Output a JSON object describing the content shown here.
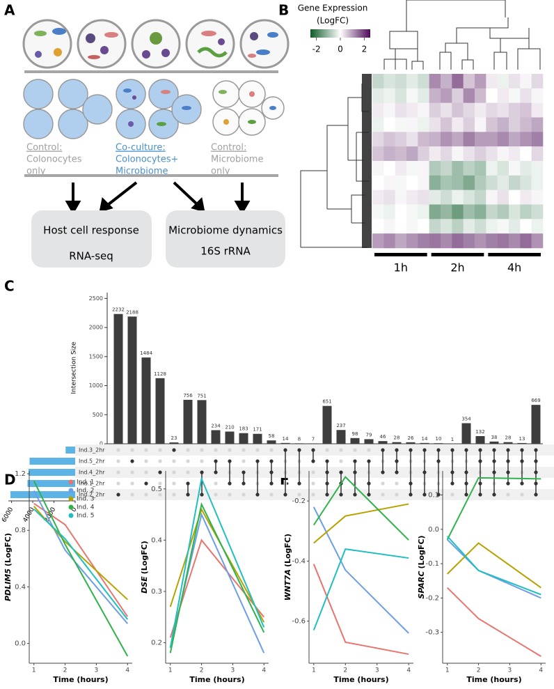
{
  "panel_labels": [
    "A",
    "B",
    "C",
    "D",
    "E"
  ],
  "diagram": {
    "groups": [
      {
        "heading": "Control:",
        "lines": [
          "Colonocytes",
          "only"
        ]
      },
      {
        "heading": "Co-culture:",
        "lines": [
          "Colonocytes+",
          "Microbiome"
        ]
      },
      {
        "heading": "Control:",
        "lines": [
          "Microbiome",
          "only"
        ]
      }
    ],
    "outputs": [
      {
        "title": "Host cell response",
        "method": "RNA-seq"
      },
      {
        "title": "Microbiome dynamics",
        "method": "16S rRNA"
      }
    ]
  },
  "chart_data": [
    {
      "type": "heatmap",
      "title": "Gene Expression",
      "subtitle": "(LogFC)",
      "colors": [
        "#0d5a2a",
        "#ffffff",
        "#4b0a55"
      ],
      "clim": [
        -2.5,
        2.5
      ],
      "colorbar_ticks": [
        -2,
        0,
        2
      ],
      "groups": [
        "1h",
        "2h",
        "4h"
      ],
      "matrix": [
        [
          -0.6,
          -0.4,
          -0.5,
          -0.3,
          -0.5,
          1.2,
          0.8,
          1.5,
          0.6,
          1.0,
          0.2,
          -0.2,
          0.3,
          0.1,
          0.4
        ],
        [
          -0.3,
          -0.2,
          -0.4,
          -0.1,
          -0.3,
          0.8,
          1.0,
          0.5,
          1.2,
          0.7,
          0.0,
          0.2,
          -0.1,
          0.3,
          0.1
        ],
        [
          0.2,
          0.1,
          0.3,
          0.2,
          0.1,
          0.5,
          0.3,
          0.6,
          0.4,
          0.2,
          0.4,
          0.3,
          0.5,
          0.6,
          0.2
        ],
        [
          -0.2,
          0.0,
          -0.1,
          0.1,
          -0.2,
          0.3,
          0.6,
          0.2,
          0.5,
          0.1,
          0.6,
          0.8,
          0.5,
          0.7,
          0.9
        ],
        [
          0.4,
          0.6,
          0.5,
          0.3,
          0.7,
          0.8,
          1.1,
          0.9,
          1.3,
          1.0,
          1.0,
          1.2,
          0.9,
          1.1,
          1.3
        ],
        [
          0.6,
          0.8,
          0.7,
          0.9,
          0.5,
          0.2,
          0.4,
          0.1,
          0.3,
          0.5,
          0.3,
          0.1,
          0.2,
          0.0,
          0.4
        ],
        [
          0.1,
          0.0,
          0.2,
          -0.1,
          0.1,
          -0.8,
          -0.6,
          -1.0,
          -0.7,
          -0.9,
          -0.2,
          -0.4,
          -0.1,
          -0.3,
          -0.2
        ],
        [
          0.0,
          0.1,
          -0.1,
          0.0,
          0.1,
          -1.2,
          -0.9,
          -1.0,
          -1.3,
          -0.8,
          -0.5,
          -0.3,
          -0.6,
          -0.4,
          -0.2
        ],
        [
          0.2,
          0.3,
          0.1,
          0.2,
          0.3,
          -0.3,
          -0.5,
          -0.2,
          -0.4,
          -0.6,
          0.1,
          0.3,
          0.0,
          0.2,
          0.1
        ],
        [
          -0.1,
          -0.2,
          0.0,
          -0.1,
          -0.2,
          -1.3,
          -1.1,
          -1.5,
          -1.0,
          -1.2,
          -0.6,
          -0.8,
          -0.4,
          -0.7,
          -0.5
        ],
        [
          0.0,
          0.1,
          0.0,
          -0.1,
          0.0,
          -0.6,
          -0.4,
          -0.7,
          -0.3,
          -0.5,
          -0.2,
          -0.1,
          -0.3,
          0.0,
          -0.2
        ],
        [
          1.0,
          1.2,
          0.9,
          1.1,
          1.3,
          1.4,
          1.2,
          1.5,
          1.3,
          1.1,
          1.3,
          1.4,
          1.2,
          1.5,
          1.1
        ]
      ]
    },
    {
      "type": "upset",
      "ylabel": "Intersection Size",
      "color": "#3d3d3d",
      "set_color": "#5bb3e6",
      "values": [
        2232,
        2188,
        1484,
        1128,
        23,
        756,
        751,
        234,
        210,
        183,
        171,
        58,
        14,
        8,
        7,
        651,
        237,
        98,
        79,
        46,
        28,
        26,
        14,
        10,
        1,
        354,
        132,
        38,
        28,
        13,
        669
      ],
      "ylim": [
        0,
        2600
      ],
      "yticks": [
        0,
        500,
        1000,
        1500,
        2000,
        2500
      ],
      "sets": [
        "Ind.3_2hr",
        "Ind.5_2hr",
        "Ind.4_2hr",
        "Ind.1_2hr",
        "Ind.2_2hr"
      ],
      "set_sizes": [
        900,
        4300,
        4400,
        4500,
        6100
      ],
      "set_xlim": [
        6300,
        0
      ],
      "set_xticks": [
        6000,
        4000,
        2000,
        0
      ],
      "memberships": [
        [
          4
        ],
        [
          1
        ],
        [
          3
        ],
        [
          2
        ],
        [
          0
        ],
        [
          3,
          4
        ],
        [
          2,
          4
        ],
        [
          1,
          2
        ],
        [
          1,
          3
        ],
        [
          2,
          3
        ],
        [
          1,
          4
        ],
        [
          1,
          2,
          3
        ],
        [
          0,
          4
        ],
        [
          0,
          3
        ],
        [
          0,
          1
        ],
        [
          1,
          2,
          3,
          4
        ],
        [
          2,
          3,
          4
        ],
        [
          1,
          2,
          4
        ],
        [
          1,
          3,
          4
        ],
        [
          0,
          2
        ],
        [
          0,
          1,
          2
        ],
        [
          0,
          3,
          4
        ],
        [
          0,
          2,
          4
        ],
        [
          0,
          1,
          4
        ],
        [
          0,
          2,
          3
        ],
        [
          0,
          2,
          3,
          4
        ],
        [
          0,
          1,
          3,
          4
        ],
        [
          0,
          1,
          2,
          4
        ],
        [
          0,
          1,
          2,
          3
        ],
        [
          0,
          1,
          3
        ],
        [
          0,
          1,
          2,
          3,
          4
        ]
      ]
    },
    {
      "type": "line",
      "gene": "PDLIM5",
      "ylabel": "(LogFC)",
      "xlabel": "Time (hours)",
      "legend": true,
      "x": [
        1,
        2,
        4
      ],
      "xlim": [
        0.85,
        4.15
      ],
      "xticks": [
        1,
        2,
        3,
        4
      ],
      "ylim": [
        -0.14,
        1.22
      ],
      "yticks": [
        {
          "value": 0,
          "label": "0.0"
        },
        0.4,
        0.8,
        1.2
      ],
      "series": [
        {
          "name": "Ind. 1",
          "color": "#e8756d",
          "values": [
            0.99,
            0.84,
            0.19
          ]
        },
        {
          "name": "Ind. 2",
          "color": "#6b9de8",
          "values": [
            1.08,
            0.66,
            0.14
          ]
        },
        {
          "name": "Ind. 3",
          "color": "#b5a200",
          "values": [
            0.97,
            0.72,
            0.31
          ]
        },
        {
          "name": "Ind. 4",
          "color": "#2db34a",
          "values": [
            1.15,
            0.7,
            -0.09
          ]
        },
        {
          "name": "Ind. 5",
          "color": "#1fbfbf",
          "values": [
            0.95,
            0.74,
            0.17
          ]
        }
      ]
    },
    {
      "type": "line",
      "gene": "DSE",
      "ylabel": "(LogFC)",
      "xlabel": "Time (hours)",
      "legend": false,
      "x": [
        1,
        2,
        4
      ],
      "xlim": [
        0.85,
        4.15
      ],
      "xticks": [
        1,
        2,
        3,
        4
      ],
      "ylim": [
        0.16,
        0.535
      ],
      "yticks": [
        0.2,
        0.3,
        0.4,
        0.5
      ],
      "series": [
        {
          "name": "Ind. 1",
          "color": "#e8756d",
          "values": [
            0.21,
            0.4,
            0.25
          ]
        },
        {
          "name": "Ind. 2",
          "color": "#6b9de8",
          "values": [
            0.19,
            0.45,
            0.18
          ]
        },
        {
          "name": "Ind. 3",
          "color": "#b5a200",
          "values": [
            0.27,
            0.46,
            0.24
          ]
        },
        {
          "name": "Ind. 4",
          "color": "#2db34a",
          "values": [
            0.18,
            0.47,
            0.22
          ]
        },
        {
          "name": "Ind. 5",
          "color": "#1fbfbf",
          "values": [
            0.19,
            0.52,
            0.23
          ]
        }
      ]
    },
    {
      "type": "line",
      "gene": "WNT7A",
      "ylabel": "(LogFC)",
      "xlabel": "Time (hours)",
      "legend": false,
      "x": [
        1,
        2,
        4
      ],
      "xlim": [
        0.85,
        4.15
      ],
      "xticks": [
        1,
        2,
        3,
        4
      ],
      "ylim": [
        -0.74,
        -0.1
      ],
      "yticks": [
        -0.6,
        -0.4,
        -0.2
      ],
      "series": [
        {
          "name": "Ind. 1",
          "color": "#e8756d",
          "values": [
            -0.41,
            -0.67,
            -0.71
          ]
        },
        {
          "name": "Ind. 2",
          "color": "#6b9de8",
          "values": [
            -0.22,
            -0.43,
            -0.64
          ]
        },
        {
          "name": "Ind. 3",
          "color": "#b5a200",
          "values": [
            -0.34,
            -0.25,
            -0.21
          ]
        },
        {
          "name": "Ind. 4",
          "color": "#2db34a",
          "values": [
            -0.28,
            -0.12,
            -0.33
          ]
        },
        {
          "name": "Ind. 5",
          "color": "#1fbfbf",
          "values": [
            -0.63,
            -0.36,
            -0.39
          ]
        }
      ]
    },
    {
      "type": "line",
      "gene": "SPARC",
      "ylabel": "(LogFC)",
      "xlabel": "Time (hours)",
      "legend": false,
      "x": [
        1,
        2,
        4
      ],
      "xlim": [
        0.85,
        4.15
      ],
      "xticks": [
        1,
        2,
        3,
        4
      ],
      "ylim": [
        -0.39,
        0.17
      ],
      "yticks": [
        -0.3,
        -0.2,
        -0.1,
        {
          "value": 0,
          "label": "0.0"
        },
        0.1
      ],
      "series": [
        {
          "name": "Ind. 1",
          "color": "#e8756d",
          "values": [
            -0.17,
            -0.26,
            -0.37
          ]
        },
        {
          "name": "Ind. 2",
          "color": "#6b9de8",
          "values": [
            -0.03,
            -0.12,
            -0.2
          ]
        },
        {
          "name": "Ind. 3",
          "color": "#b5a200",
          "values": [
            -0.13,
            -0.04,
            -0.17
          ]
        },
        {
          "name": "Ind. 4",
          "color": "#2db34a",
          "values": [
            -0.03,
            0.15,
            0.147
          ]
        },
        {
          "name": "Ind. 5",
          "color": "#1fbfbf",
          "values": [
            -0.02,
            -0.12,
            -0.19
          ]
        }
      ]
    }
  ]
}
